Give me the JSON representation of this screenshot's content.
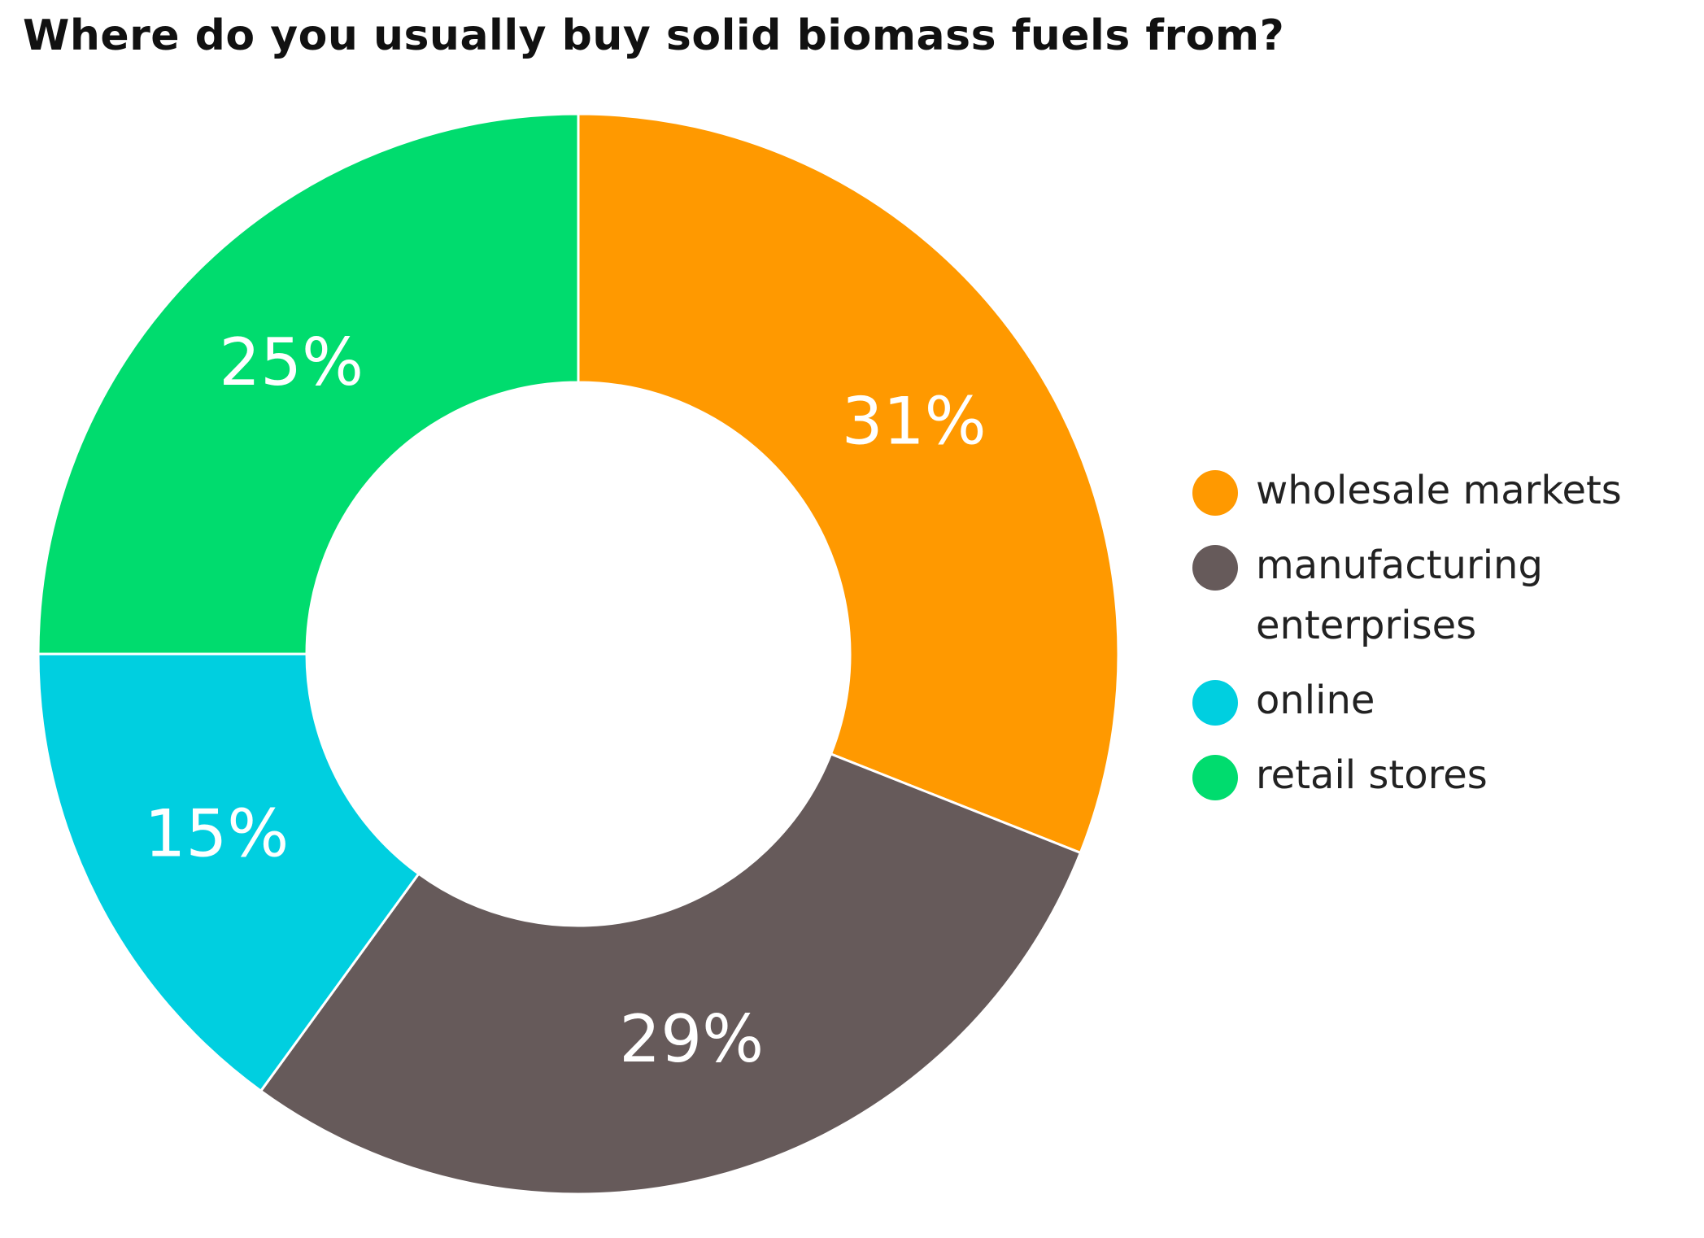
{
  "chart_data": {
    "type": "pie",
    "title": "Where do you usually buy solid biomass fuels from?",
    "categories": [
      "wholesale markets",
      "manufacturing enterprises",
      "online",
      "retail stores"
    ],
    "values": [
      31,
      29,
      15,
      25
    ],
    "value_labels": [
      "31%",
      "29%",
      "15%",
      "25%"
    ],
    "colors": [
      "#ff9900",
      "#665a5a",
      "#00cfe0",
      "#00dc6e"
    ],
    "legend": "right"
  }
}
